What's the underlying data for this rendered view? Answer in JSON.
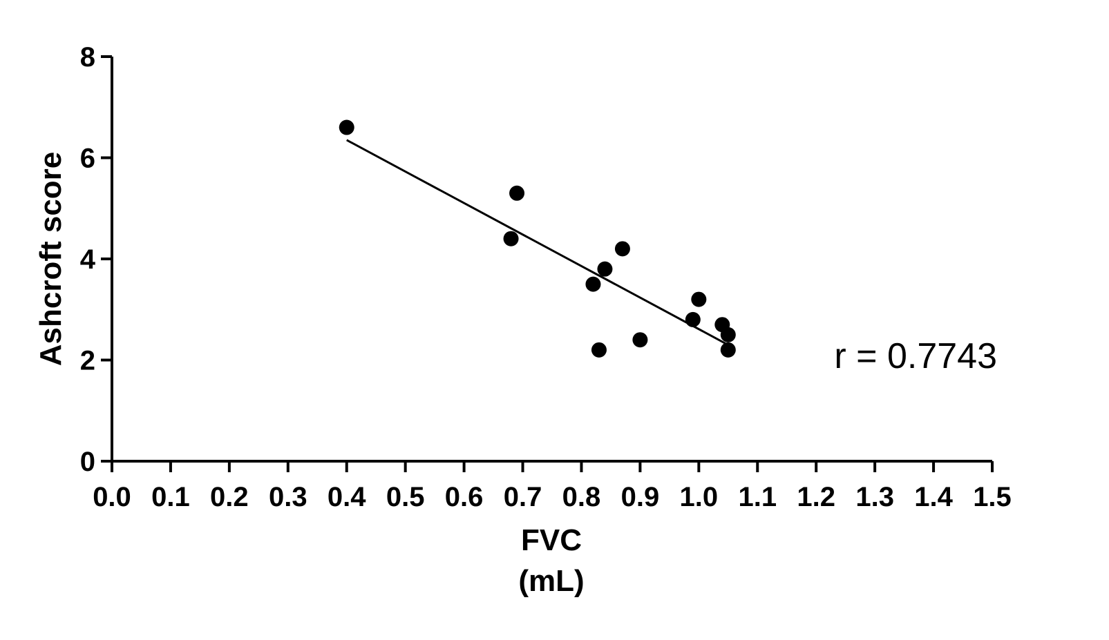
{
  "chart_data": {
    "type": "scatter",
    "xlabel": "FVC",
    "xlabel_unit": "(mL)",
    "ylabel": "Ashcroft score",
    "xlim": [
      0.0,
      1.5
    ],
    "ylim": [
      0,
      8
    ],
    "x_ticks": [
      "0.0",
      "0.1",
      "0.2",
      "0.3",
      "0.4",
      "0.5",
      "0.6",
      "0.7",
      "0.8",
      "0.9",
      "1.0",
      "1.1",
      "1.2",
      "1.3",
      "1.4",
      "1.5"
    ],
    "y_ticks": [
      "0",
      "2",
      "4",
      "6",
      "8"
    ],
    "grid": false,
    "legend": "none",
    "series": [
      {
        "points": [
          {
            "x": 0.4,
            "y": 6.6
          },
          {
            "x": 0.68,
            "y": 4.4
          },
          {
            "x": 0.69,
            "y": 5.3
          },
          {
            "x": 0.82,
            "y": 3.5
          },
          {
            "x": 0.83,
            "y": 2.2
          },
          {
            "x": 0.84,
            "y": 3.8
          },
          {
            "x": 0.87,
            "y": 4.2
          },
          {
            "x": 0.9,
            "y": 2.4
          },
          {
            "x": 0.99,
            "y": 2.8
          },
          {
            "x": 1.0,
            "y": 3.2
          },
          {
            "x": 1.04,
            "y": 2.7
          },
          {
            "x": 1.05,
            "y": 2.5
          },
          {
            "x": 1.05,
            "y": 2.2
          }
        ]
      }
    ],
    "regression_line": {
      "x": [
        0.4,
        1.05
      ],
      "y": [
        6.35,
        2.3
      ]
    },
    "annotations": [
      {
        "text": "r = 0.7743"
      }
    ],
    "colors": {
      "marker": "#000000",
      "line": "#000000",
      "axis": "#000000"
    }
  }
}
